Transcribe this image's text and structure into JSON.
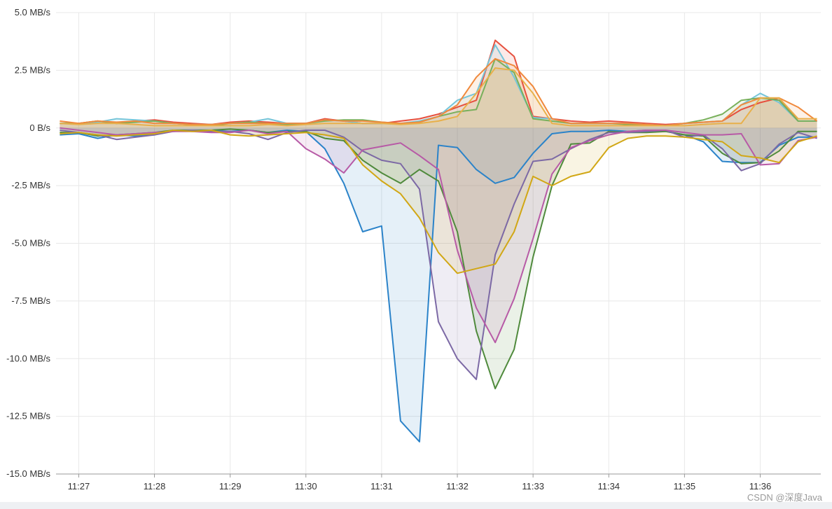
{
  "watermark": "CSDN @深度Java",
  "chart_data": {
    "type": "area",
    "title": "",
    "xlabel": "",
    "ylabel": "",
    "ylim": [
      -15,
      5
    ],
    "yticks": [
      5,
      2.5,
      0,
      -2.5,
      -5,
      -7.5,
      -10,
      -12.5,
      -15
    ],
    "ytick_labels": [
      "5.0 MB/s",
      "2.5 MB/s",
      "0 B/s",
      "-2.5 MB/s",
      "-5.0 MB/s",
      "-7.5 MB/s",
      "-10.0 MB/s",
      "-12.5 MB/s",
      "-15.0 MB/s"
    ],
    "xlim": [
      "11:26:42",
      "11:36:48"
    ],
    "xticks": [
      "11:27",
      "11:28",
      "11:29",
      "11:30",
      "11:31",
      "11:32",
      "11:33",
      "11:34",
      "11:35",
      "11:36"
    ],
    "grid": true,
    "legend": "none",
    "x": [
      "11:26:45",
      "11:27:00",
      "11:27:15",
      "11:27:30",
      "11:27:45",
      "11:28:00",
      "11:28:15",
      "11:28:30",
      "11:28:45",
      "11:29:00",
      "11:29:15",
      "11:29:30",
      "11:29:45",
      "11:30:00",
      "11:30:15",
      "11:30:30",
      "11:30:45",
      "11:31:00",
      "11:31:15",
      "11:31:30",
      "11:31:45",
      "11:32:00",
      "11:32:15",
      "11:32:30",
      "11:32:45",
      "11:33:00",
      "11:33:15",
      "11:33:30",
      "11:33:45",
      "11:34:00",
      "11:34:15",
      "11:34:30",
      "11:34:45",
      "11:35:00",
      "11:35:15",
      "11:35:30",
      "11:35:45",
      "11:36:00",
      "11:36:15",
      "11:36:30",
      "11:36:45"
    ],
    "series": [
      {
        "color": "#e6503e",
        "values": [
          0.2,
          0.2,
          0.3,
          0.2,
          0.3,
          0.35,
          0.25,
          0.2,
          0.15,
          0.25,
          0.3,
          0.25,
          0.2,
          0.2,
          0.4,
          0.3,
          0.2,
          0.2,
          0.3,
          0.4,
          0.6,
          0.9,
          1.2,
          3.8,
          3.1,
          0.5,
          0.4,
          0.3,
          0.25,
          0.3,
          0.25,
          0.2,
          0.15,
          0.2,
          0.25,
          0.3,
          0.8,
          1.1,
          1.3,
          0.3,
          0.3
        ]
      },
      {
        "color": "#76c5d9",
        "values": [
          0.2,
          0.2,
          0.25,
          0.4,
          0.35,
          0.3,
          0.2,
          0.15,
          0.15,
          0.2,
          0.25,
          0.4,
          0.2,
          0.2,
          0.35,
          0.3,
          0.2,
          0.2,
          0.2,
          0.3,
          0.5,
          1.2,
          1.5,
          3.6,
          2.2,
          0.45,
          0.4,
          0.2,
          0.2,
          0.2,
          0.2,
          0.15,
          0.1,
          0.2,
          0.25,
          0.3,
          1.0,
          1.5,
          1.1,
          0.3,
          0.3
        ]
      },
      {
        "color": "#78b05b",
        "values": [
          0.2,
          0.2,
          0.3,
          0.2,
          0.25,
          0.3,
          0.2,
          0.15,
          0.1,
          0.2,
          0.25,
          0.2,
          0.15,
          0.2,
          0.3,
          0.35,
          0.35,
          0.25,
          0.2,
          0.25,
          0.5,
          0.7,
          0.8,
          3.0,
          2.4,
          0.4,
          0.3,
          0.2,
          0.2,
          0.2,
          0.15,
          0.1,
          0.1,
          0.2,
          0.35,
          0.6,
          1.2,
          1.3,
          1.2,
          0.3,
          0.3
        ]
      },
      {
        "color": "#f0893c",
        "values": [
          0.3,
          0.2,
          0.3,
          0.25,
          0.3,
          0.2,
          0.2,
          0.15,
          0.15,
          0.2,
          0.2,
          0.2,
          0.2,
          0.2,
          0.35,
          0.3,
          0.3,
          0.25,
          0.2,
          0.25,
          0.5,
          1.0,
          2.2,
          3.0,
          2.7,
          1.8,
          0.4,
          0.2,
          0.2,
          0.2,
          0.2,
          0.15,
          0.1,
          0.2,
          0.25,
          0.3,
          1.0,
          1.3,
          1.3,
          0.9,
          0.3
        ]
      },
      {
        "color": "#e8b04a",
        "values": [
          0.2,
          0.15,
          0.2,
          0.2,
          0.15,
          0.1,
          0.1,
          0.1,
          0.1,
          0.1,
          0.1,
          0.15,
          0.1,
          0.15,
          0.2,
          0.2,
          0.2,
          0.2,
          0.15,
          0.2,
          0.3,
          0.5,
          1.5,
          2.6,
          2.5,
          1.5,
          0.2,
          0.1,
          0.1,
          0.1,
          0.1,
          0.1,
          0.1,
          0.1,
          0.15,
          0.2,
          0.2,
          1.3,
          1.3,
          0.4,
          0.4
        ]
      },
      {
        "color": "#2b83c9",
        "values": [
          -0.3,
          -0.25,
          -0.45,
          -0.3,
          -0.35,
          -0.3,
          -0.1,
          -0.1,
          -0.1,
          -0.15,
          -0.1,
          -0.2,
          -0.1,
          -0.15,
          -0.9,
          -2.4,
          -4.5,
          -4.25,
          -12.7,
          -13.6,
          -0.75,
          -0.85,
          -1.8,
          -2.4,
          -2.15,
          -1.1,
          -0.25,
          -0.15,
          -0.15,
          -0.1,
          -0.15,
          -0.1,
          -0.15,
          -0.3,
          -0.6,
          -1.45,
          -1.5,
          -1.5,
          -0.75,
          -0.4,
          -0.4
        ]
      },
      {
        "color": "#4f8a3c",
        "values": [
          -0.2,
          -0.2,
          -0.35,
          -0.3,
          -0.25,
          -0.2,
          -0.1,
          -0.1,
          -0.1,
          -0.05,
          -0.1,
          -0.2,
          -0.15,
          -0.15,
          -0.45,
          -0.55,
          -1.4,
          -1.95,
          -2.4,
          -1.8,
          -2.3,
          -4.5,
          -8.8,
          -11.3,
          -9.6,
          -5.6,
          -2.5,
          -0.7,
          -0.65,
          -0.15,
          -0.2,
          -0.2,
          -0.15,
          -0.3,
          -0.35,
          -1.1,
          -1.55,
          -1.5,
          -1.0,
          -0.15,
          -0.15
        ]
      },
      {
        "color": "#7c69a5",
        "values": [
          -0.1,
          -0.2,
          -0.3,
          -0.5,
          -0.4,
          -0.3,
          -0.15,
          -0.1,
          -0.15,
          -0.15,
          -0.25,
          -0.5,
          -0.2,
          -0.1,
          -0.1,
          -0.4,
          -1.0,
          -1.4,
          -1.55,
          -2.65,
          -8.4,
          -10.0,
          -10.9,
          -5.5,
          -3.3,
          -1.45,
          -1.35,
          -0.9,
          -0.5,
          -0.2,
          -0.2,
          -0.15,
          -0.1,
          -0.4,
          -0.3,
          -0.9,
          -1.85,
          -1.55,
          -0.7,
          -0.2,
          -0.45
        ]
      },
      {
        "color": "#b75aa6",
        "values": [
          0.0,
          -0.1,
          -0.2,
          -0.3,
          -0.25,
          -0.2,
          -0.15,
          -0.15,
          -0.2,
          -0.2,
          -0.1,
          -0.25,
          -0.15,
          -0.9,
          -1.35,
          -1.95,
          -0.95,
          -0.8,
          -0.65,
          -1.2,
          -1.8,
          -5.3,
          -7.8,
          -9.3,
          -7.4,
          -4.8,
          -2.0,
          -0.85,
          -0.55,
          -0.3,
          -0.15,
          -0.1,
          -0.1,
          -0.2,
          -0.3,
          -0.3,
          -0.25,
          -1.6,
          -1.55,
          -0.55,
          -0.4
        ]
      },
      {
        "color": "#d1a715",
        "values": [
          -0.25,
          -0.2,
          -0.3,
          -0.35,
          -0.3,
          -0.25,
          -0.1,
          -0.15,
          -0.1,
          -0.3,
          -0.35,
          -0.3,
          -0.25,
          -0.2,
          -0.3,
          -0.45,
          -1.6,
          -2.3,
          -2.85,
          -3.9,
          -5.4,
          -6.3,
          -6.1,
          -5.9,
          -4.5,
          -2.1,
          -2.5,
          -2.1,
          -1.9,
          -0.85,
          -0.45,
          -0.35,
          -0.35,
          -0.4,
          -0.5,
          -0.6,
          -1.2,
          -1.3,
          -1.5,
          -0.6,
          -0.35
        ]
      }
    ]
  }
}
